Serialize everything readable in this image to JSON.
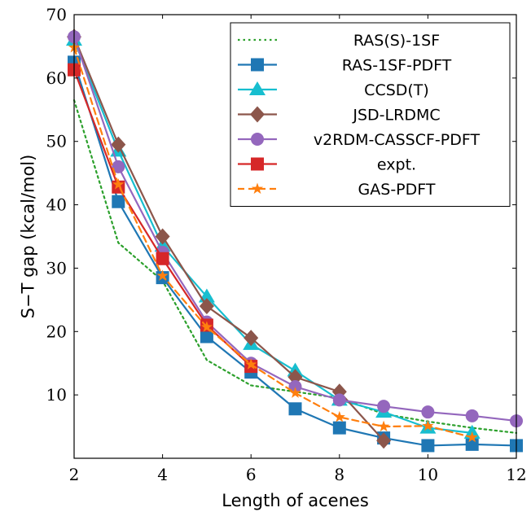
{
  "chart_data": {
    "type": "line",
    "xlabel": "Length of acenes",
    "ylabel": "S−T gap (kcal/mol)",
    "xlim": [
      2,
      12
    ],
    "ylim": [
      0,
      70
    ],
    "xticks": [
      2,
      4,
      6,
      8,
      10,
      12
    ],
    "yticks": [
      10,
      20,
      30,
      40,
      50,
      60,
      70
    ],
    "grid": false,
    "legend_position": "top-right",
    "series": [
      {
        "name": "RAS(S)-1SF",
        "color": "#2ca02c",
        "dash": "dotted",
        "marker": "none",
        "x": [
          2,
          3,
          4,
          5,
          6,
          7,
          8,
          9,
          10,
          11,
          12
        ],
        "y": [
          56.5,
          34,
          28,
          15.5,
          11.5,
          10.5,
          9.5,
          7,
          5.8,
          4.8,
          4
        ]
      },
      {
        "name": "RAS-1SF-PDFT",
        "color": "#1f77b4",
        "dash": "solid",
        "marker": "square",
        "x": [
          2,
          3,
          4,
          5,
          6,
          7,
          8,
          9,
          10,
          11,
          12
        ],
        "y": [
          62.5,
          40.5,
          28.5,
          19.2,
          13.6,
          7.8,
          4.8,
          3.2,
          2.0,
          2.2,
          2.0
        ]
      },
      {
        "name": "CCSD(T)",
        "color": "#17becf",
        "dash": "solid",
        "marker": "triangle",
        "x": [
          2,
          3,
          4,
          5,
          6,
          7,
          8,
          9,
          10,
          11
        ],
        "y": [
          66,
          48.5,
          33.5,
          25.5,
          18,
          13.8,
          9.2,
          7.3,
          4.8,
          4
        ]
      },
      {
        "name": "JSD-LRDMC",
        "color": "#8c564b",
        "dash": "solid",
        "marker": "diamond",
        "x": [
          2,
          3,
          4,
          5,
          6,
          7,
          8,
          9
        ],
        "y": [
          66.5,
          49.5,
          35,
          24,
          19,
          12.8,
          10.5,
          2.8
        ]
      },
      {
        "name": "v2RDM-CASSCF-PDFT",
        "color": "#9467bd",
        "dash": "solid",
        "marker": "circle",
        "x": [
          2,
          3,
          4,
          5,
          6,
          7,
          8,
          9,
          10,
          11,
          12
        ],
        "y": [
          66.5,
          46,
          32.5,
          21.5,
          15,
          11.3,
          9.2,
          8.2,
          7.3,
          6.7,
          5.9
        ]
      },
      {
        "name": "expt.",
        "color": "#d62728",
        "dash": "solid",
        "marker": "square",
        "x": [
          2,
          3,
          4,
          5,
          6
        ],
        "y": [
          61.3,
          42.8,
          31.5,
          21,
          14.5
        ]
      },
      {
        "name": "GAS-PDFT",
        "color": "#ff7f0e",
        "dash": "dashed",
        "marker": "star",
        "x": [
          2,
          3,
          4,
          5,
          6,
          7,
          8,
          9,
          10,
          11
        ],
        "y": [
          64.8,
          43.2,
          28.8,
          20.7,
          14.8,
          10.3,
          6.5,
          5.0,
          5.1,
          3.3
        ]
      }
    ]
  }
}
